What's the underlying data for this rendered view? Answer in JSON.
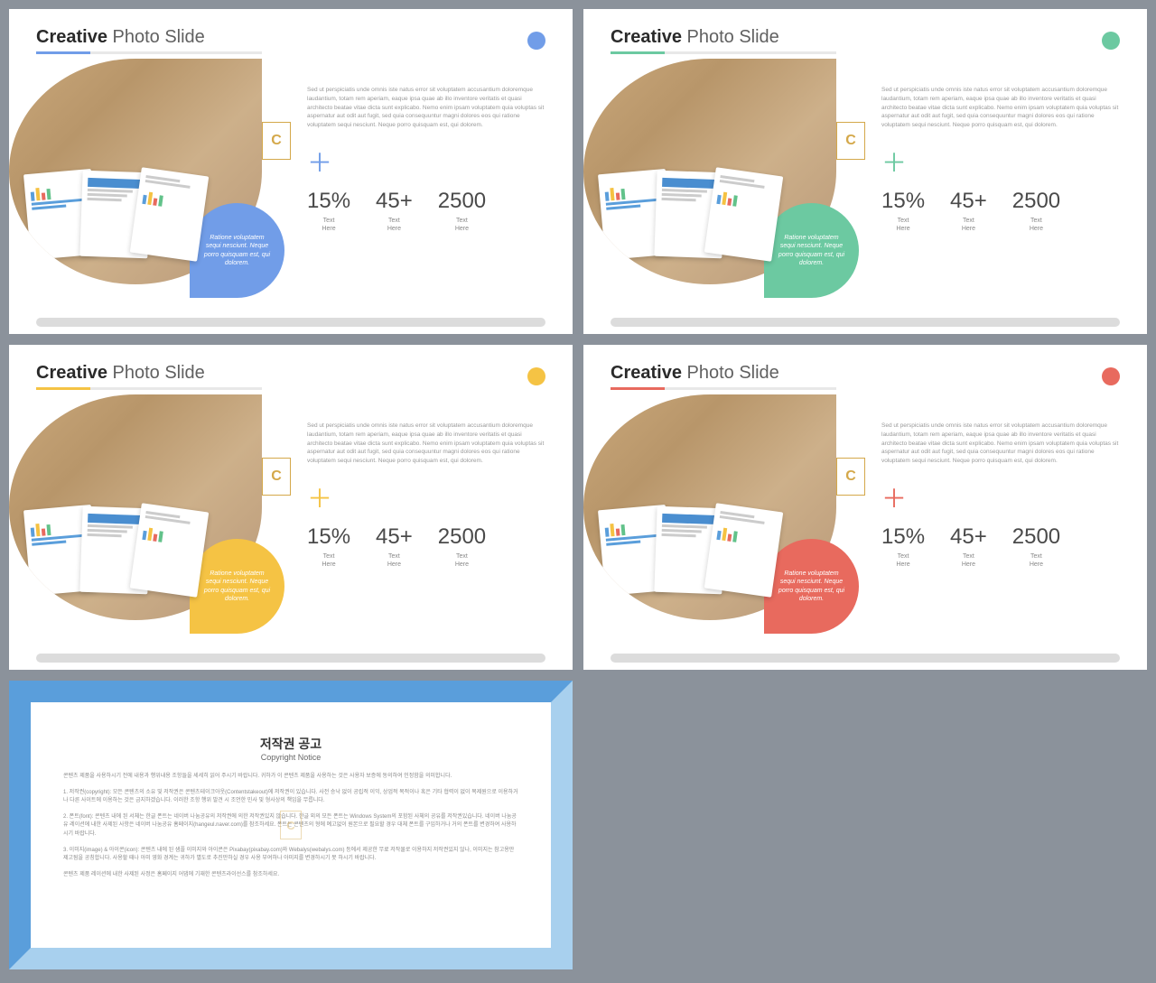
{
  "background_color": "#8b929b",
  "slides": [
    {
      "accent": "#719de8",
      "badge_bg": "#719de8",
      "plus": "#719de8"
    },
    {
      "accent": "#6cc9a1",
      "badge_bg": "#6cc9a1",
      "plus": "#6cc9a1"
    },
    {
      "accent": "#f5c344",
      "badge_bg": "#f5c344",
      "plus": "#f5c344"
    },
    {
      "accent": "#e86a5e",
      "badge_bg": "#e86a5e",
      "plus": "#e86a5e"
    }
  ],
  "title_bold": "Creative",
  "title_light": "Photo Slide",
  "leaf_text": "Ratione voluptatem sequi nesciunt. Neque porro quisquam est, qui dolorem.",
  "body_text": "Sed ut perspiciatis unde omnis iste natus error sit voluptatem accusantium doloremque laudantium, totam rem aperiam, eaque ipsa quae ab illo inventore veritatis et quasi architecto beatae vitae dicta sunt explicabo. Nemo enim ipsam voluptatem quia voluptas sit aspernatur aut odit aut fugit, sed quia consequuntur magni dolores eos qui ratione voluptatem sequi nesciunt. Neque porro quisquam est, qui dolorem.",
  "stats": [
    {
      "value": "15%",
      "label1": "Text",
      "label2": "Here"
    },
    {
      "value": "45+",
      "label1": "Text",
      "label2": "Here"
    },
    {
      "value": "2500",
      "label1": "Text",
      "label2": "Here"
    }
  ],
  "copyright": {
    "border_top": "#5a9edb",
    "border_left": "#5a9edb",
    "border_right": "#a8d0ee",
    "border_bottom": "#a8d0ee",
    "title": "저작권 공고",
    "subtitle": "Copyright Notice",
    "paragraphs": [
      "콘텐츠 제품을 사용하시기 전에 내용과 행위내용 조항들을 세세히 읽어 주시기 바랍니다. 귀하가 이 콘텐츠 제품을 사용하는 것은 사용자 보증에 동의하여 인정함을 의미합니다.",
      "1. 저작권(copyright): 모든 콘텐츠의 소유 및 저작권은 콘텐츠테이크아웃(Contentstakeout)에 저작권이 있습니다. 사전 승낙 없이 공립적 이익, 상업적 목적이나 혹은 기타 협력이 없이 복제원으로 이용하거나 다른 사이트에 이용하는 것은 금지하겠습니다. 이러한 조항 행위 발견 시 조언한 민사 및 형사상의 책임을 무릅니다.",
      "2. 폰트(font): 콘텐츠 내에 된 서체는 한글 폰트는 네이버 나눔공유의 저작권에 의한 저작권있지 않습니다. 한글 외의 모든 폰트는 Windows System의 포함된 사체의 공유를 저작권있습니다. 네이버 나눔공유 레이션에 내한 사제된 사항은 네이버 나눔공유 홈페이지(hangeul.naver.com)를 참조하세요. 폰트는 콘텐츠의 형에 예고없이 원본으로 필요할 경우 대체 폰트를 구입하거나 거의 폰트를 변경하여 사용하시기 바랍니다.",
      "3. 이미지(image) & 아이콘(icon): 콘텐츠 내에 된 샘플 이미지와 아이콘은 Pixabay(pixabay.com)와 Webalys(webalys.com) 등에서 제공한 무료 저작물로 이용하지 저작권있지 않나, 이미지는 참고용만 제고됨을 공칭합니다. 사용할 때나 아미 영화 경계는 귀하가 별도로 추진만하실 경우 사용 부여하나 아미지를 변경하시기 못 하시기 바랍니다.",
      "콘텐츠 제품 레이션에 내한 사제된 사정은 홈페이지 어댑에 기재한 콘텐츠라이선스를 참조하세요."
    ]
  }
}
